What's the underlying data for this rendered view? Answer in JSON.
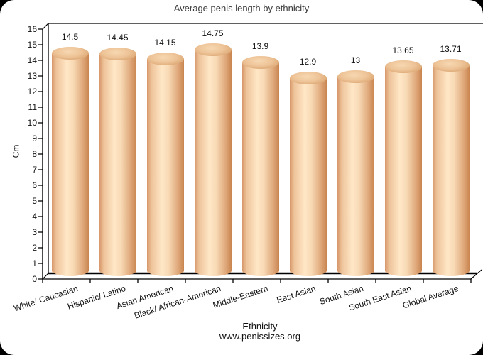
{
  "window": {
    "page_background": "#000000",
    "frame_background": "#ffffff"
  },
  "chart_data": {
    "type": "bar",
    "style": "3d-cylinder",
    "title": "Average penis length by ethnicity",
    "categories": [
      "White/ Caucasian",
      "Hispanic/ Latino",
      "Asian American",
      "Black/ African-American",
      "Middle-Eastern",
      "East Asian",
      "South Asian",
      "South East Asian",
      "Global Average"
    ],
    "values": [
      14.5,
      14.45,
      14.15,
      14.75,
      13.9,
      12.9,
      13,
      13.65,
      13.71
    ],
    "value_labels": [
      "14.5",
      "14.45",
      "14.15",
      "14.75",
      "13.9",
      "12.9",
      "13",
      "13.65",
      "13.71"
    ],
    "xlabel": "Ethnicity",
    "ylabel": "Cm",
    "source": "www.penissizes.org",
    "ylim": [
      0,
      16
    ],
    "y_ticks": [
      0,
      1,
      2,
      3,
      4,
      5,
      6,
      7,
      8,
      9,
      10,
      11,
      12,
      13,
      14,
      15,
      16
    ],
    "grid": false,
    "legend": false,
    "colors": {
      "bar_highlight": "#ffe7c6",
      "bar_shadow": "#c98550",
      "cap_light": "#f7d8b2",
      "cap_rim": "#cf9060",
      "axis": "#000000",
      "text": "#111111",
      "title_text": "#3a3a3a"
    }
  }
}
